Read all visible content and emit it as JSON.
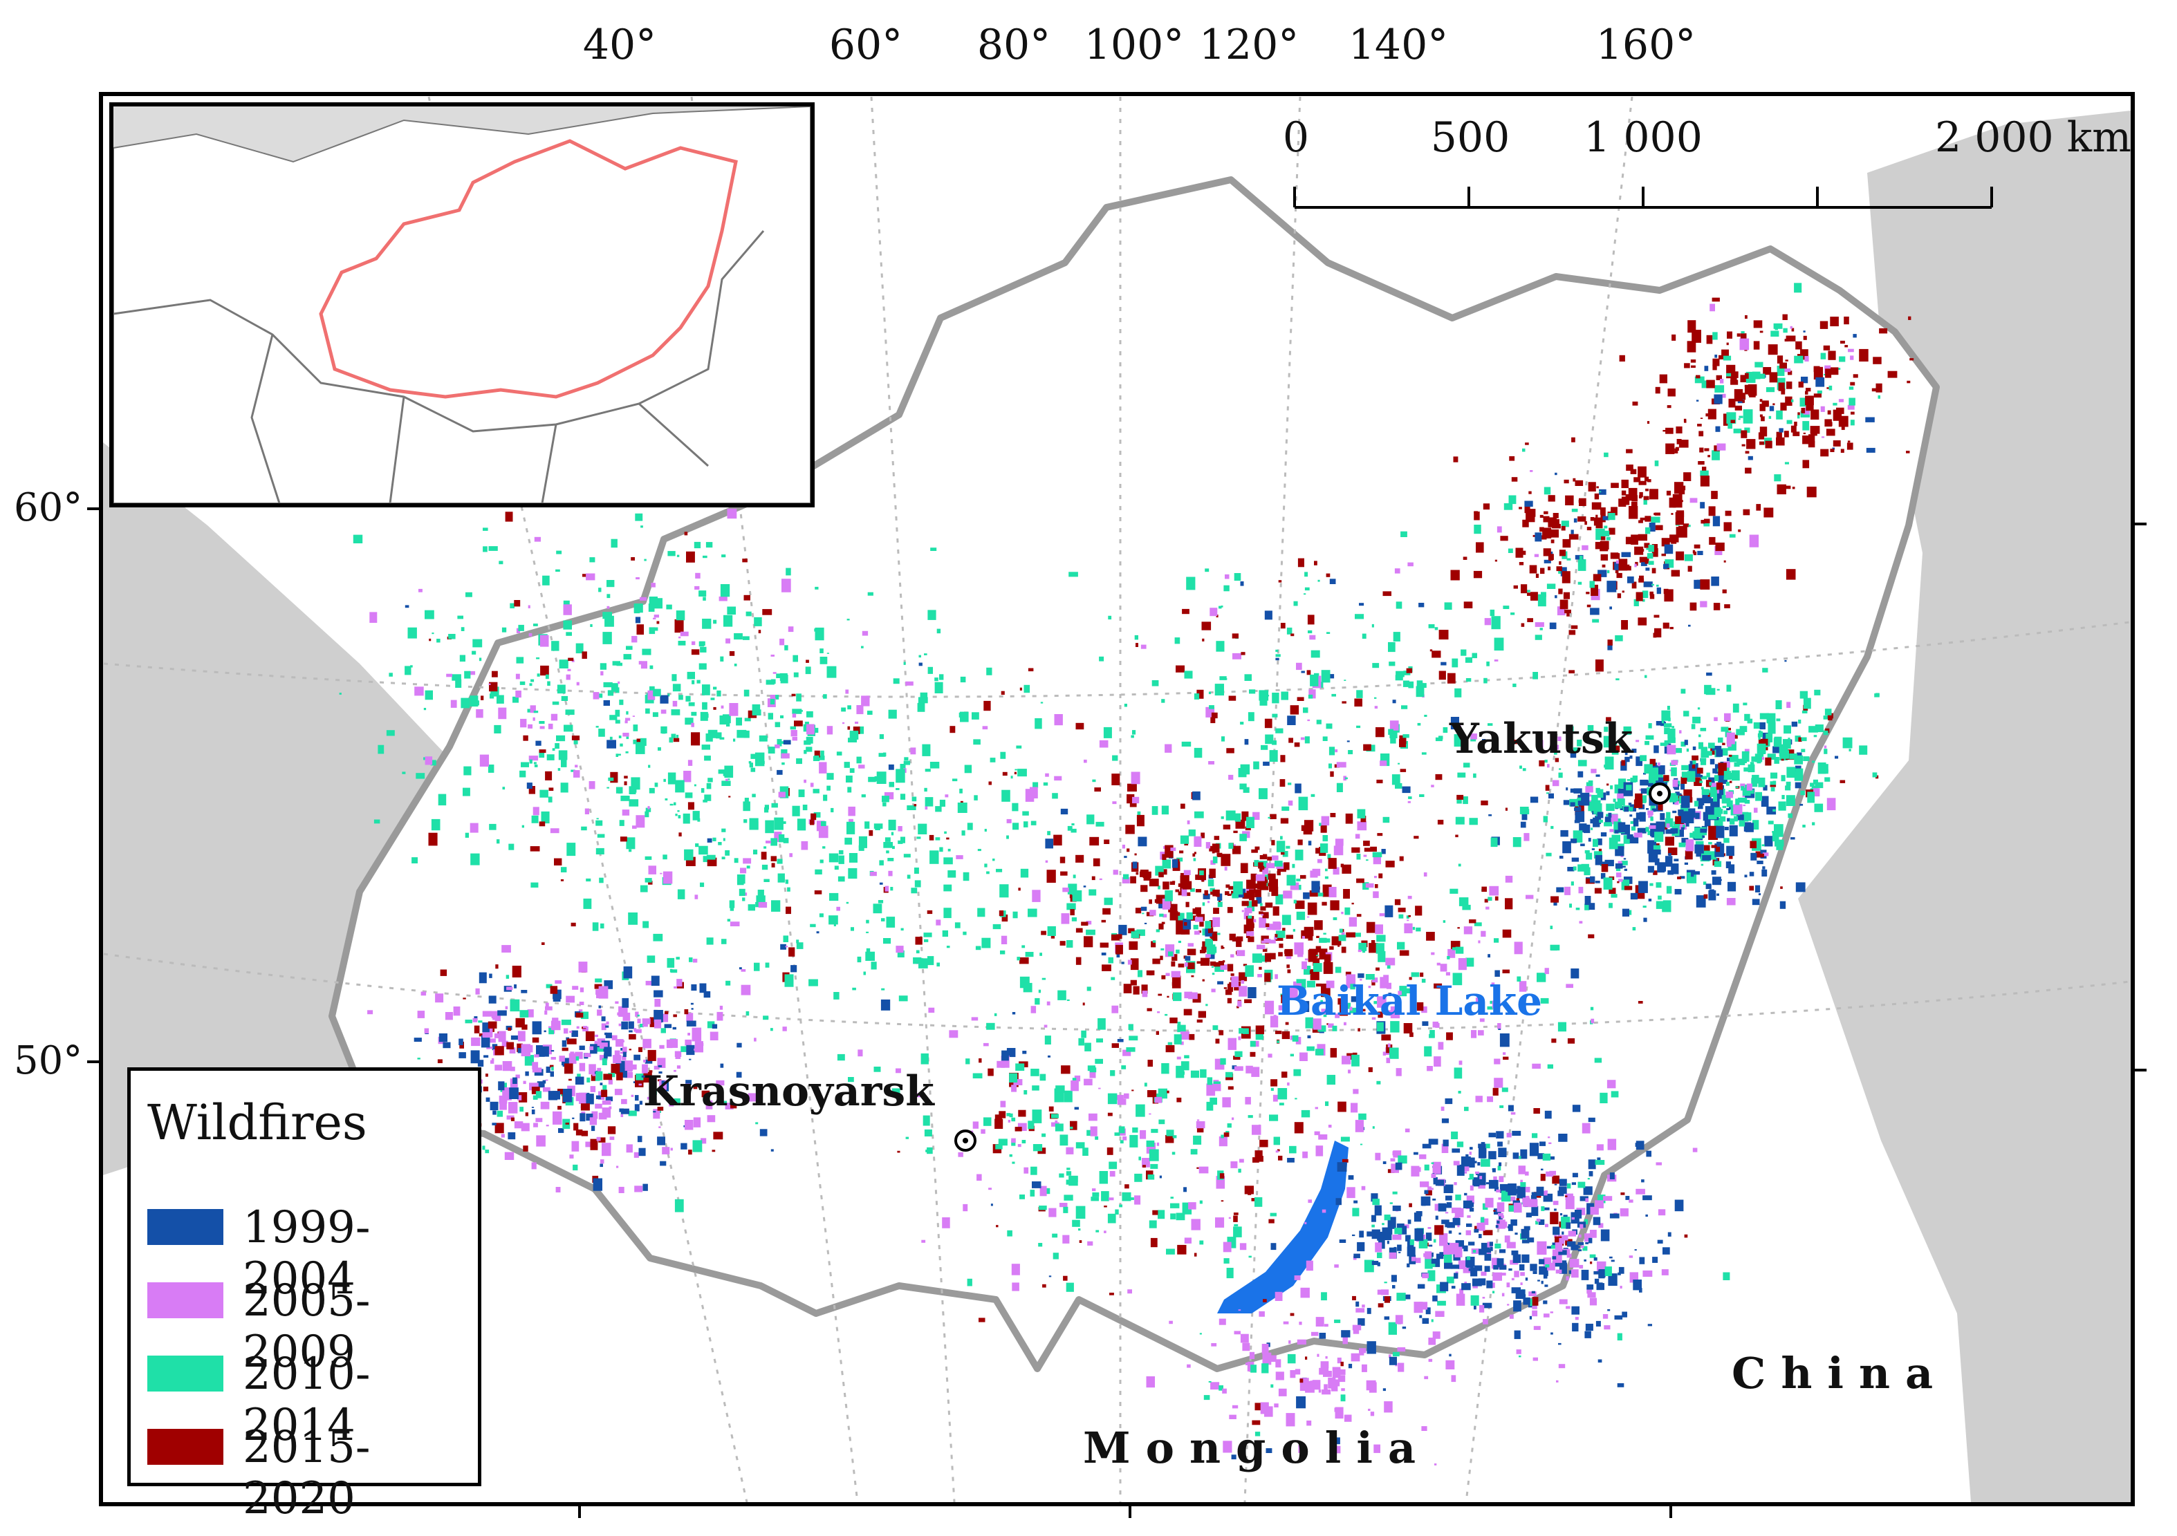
{
  "graticule": {
    "top_longitudes": [
      "40°",
      "60°",
      "80°",
      "100°",
      "120°",
      "140°",
      "160°"
    ],
    "left_latitudes": [
      "60°",
      "50°"
    ]
  },
  "scale_bar": {
    "labels": [
      "0",
      "500",
      "1 000",
      "2 000 km"
    ]
  },
  "places": {
    "yakutsk": "Yakutsk",
    "krasnoyarsk": "Krasnoyarsk",
    "baikal": "Baikal Lake",
    "china": "China",
    "mongolia": "Mongolia"
  },
  "legend": {
    "title": "Wildfires",
    "items": [
      {
        "label": "1999-2004",
        "color": "#1450a8"
      },
      {
        "label": "2005-2009",
        "color": "#d87cf5"
      },
      {
        "label": "2010-2014",
        "color": "#1fe0a8"
      },
      {
        "label": "2015-2020",
        "color": "#a00000"
      }
    ]
  },
  "colors": {
    "land_outside": "#cfcfcf",
    "study_area": "#ffffff",
    "coast_outline": "#9a9a9a",
    "inset_region_outline": "#f07070",
    "lake": "#1a73e8",
    "graticule": "#bbbbbb"
  }
}
